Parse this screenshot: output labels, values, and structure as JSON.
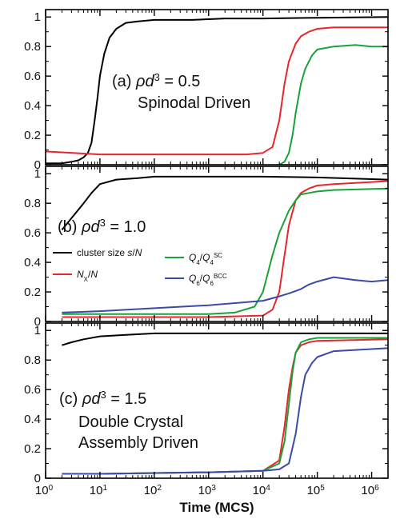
{
  "chart_data": {
    "type": "line",
    "x_scale": "log",
    "xlim": [
      1,
      2000000
    ],
    "x_ticks": [
      1,
      10,
      100,
      1000,
      10000,
      100000,
      1000000
    ],
    "x_tick_labels": [
      {
        "base": "10",
        "exp": "0"
      },
      {
        "base": "10",
        "exp": "1"
      },
      {
        "base": "10",
        "exp": "2"
      },
      {
        "base": "10",
        "exp": "3"
      },
      {
        "base": "10",
        "exp": "4"
      },
      {
        "base": "10",
        "exp": "5"
      },
      {
        "base": "10",
        "exp": "6"
      }
    ],
    "xlabel": "Time (MCS)",
    "ylim": [
      0,
      1.05
    ],
    "y_ticks": [
      "0",
      "0.2",
      "0.4",
      "0.6",
      "0.8",
      "1"
    ],
    "grid": false,
    "colors": {
      "black": "#000000",
      "red": "#e8262b",
      "green": "#1aa23a",
      "blue": "#3a4aa8"
    },
    "legend": {
      "placement": "panel-b-left",
      "entries": [
        {
          "label": "cluster size s/N",
          "color": "#000000"
        },
        {
          "label": "NX/N",
          "color": "#e8262b"
        },
        {
          "label": "Q4/Q4SC",
          "color": "#1aa23a"
        },
        {
          "label": "Q6/Q6BCC",
          "color": "#3a4aa8"
        }
      ]
    },
    "panels": [
      {
        "label_lines": [
          "(a) ρd3 = 0.5",
          "Spinodal Driven"
        ],
        "series": [
          {
            "color": "#000000",
            "x": [
              1,
              2,
              3,
              4,
              5,
              6,
              7,
              8,
              9,
              10,
              12,
              15,
              20,
              30,
              50,
              100,
              200,
              500,
              1000,
              2000,
              5000,
              10000,
              100000,
              2000000
            ],
            "y": [
              0.01,
              0.01,
              0.02,
              0.03,
              0.05,
              0.08,
              0.15,
              0.3,
              0.45,
              0.6,
              0.75,
              0.86,
              0.92,
              0.96,
              0.97,
              0.98,
              0.98,
              0.98,
              0.985,
              0.99,
              0.99,
              0.99,
              0.995,
              1.0
            ]
          },
          {
            "color": "#e8262b",
            "x": [
              1,
              10,
              100,
              1000,
              5000,
              10000,
              15000,
              20000,
              25000,
              30000,
              40000,
              50000,
              70000,
              100000,
              200000,
              500000,
              2000000
            ],
            "y": [
              0.09,
              0.07,
              0.07,
              0.07,
              0.07,
              0.08,
              0.12,
              0.3,
              0.55,
              0.7,
              0.82,
              0.87,
              0.9,
              0.92,
              0.93,
              0.93,
              0.93
            ]
          },
          {
            "color": "#1aa23a",
            "x": [
              20000,
              25000,
              30000,
              35000,
              40000,
              50000,
              60000,
              80000,
              100000,
              200000,
              500000,
              1000000,
              2000000
            ],
            "y": [
              0,
              0.02,
              0.08,
              0.2,
              0.35,
              0.55,
              0.65,
              0.74,
              0.78,
              0.8,
              0.81,
              0.8,
              0.8
            ]
          }
        ]
      },
      {
        "label_lines": [
          "(b) ρd3 = 1.0"
        ],
        "series": [
          {
            "color": "#000000",
            "x": [
              2,
              3,
              5,
              7,
              10,
              20,
              50,
              100,
              1000,
              10000,
              100000,
              2000000
            ],
            "y": [
              0.62,
              0.7,
              0.8,
              0.87,
              0.93,
              0.96,
              0.97,
              0.98,
              0.98,
              0.98,
              0.975,
              0.96
            ]
          },
          {
            "color": "#e8262b",
            "x": [
              2,
              10,
              1000,
              10000,
              15000,
              20000,
              25000,
              30000,
              40000,
              50000,
              70000,
              100000,
              200000,
              2000000
            ],
            "y": [
              0.03,
              0.03,
              0.03,
              0.04,
              0.08,
              0.2,
              0.45,
              0.65,
              0.82,
              0.87,
              0.9,
              0.92,
              0.93,
              0.95
            ]
          },
          {
            "color": "#1aa23a",
            "x": [
              2,
              10,
              1000,
              3000,
              7000,
              10000,
              15000,
              20000,
              30000,
              40000,
              50000,
              70000,
              100000,
              200000,
              2000000
            ],
            "y": [
              0.05,
              0.05,
              0.05,
              0.06,
              0.1,
              0.2,
              0.45,
              0.6,
              0.75,
              0.82,
              0.86,
              0.87,
              0.88,
              0.89,
              0.9
            ]
          },
          {
            "color": "#3a4aa8",
            "x": [
              2,
              10,
              100,
              1000,
              10000,
              20000,
              30000,
              50000,
              70000,
              100000,
              200000,
              500000,
              1000000,
              2000000
            ],
            "y": [
              0.06,
              0.07,
              0.09,
              0.11,
              0.14,
              0.17,
              0.19,
              0.22,
              0.25,
              0.27,
              0.3,
              0.28,
              0.27,
              0.28
            ]
          }
        ]
      },
      {
        "label_lines": [
          "(c) ρd3 = 1.5",
          "Double Crystal",
          "Assembly Driven"
        ],
        "series": [
          {
            "color": "#000000",
            "x": [
              2,
              3,
              5,
              10,
              30,
              100,
              1000,
              10000,
              100000,
              2000000
            ],
            "y": [
              0.9,
              0.92,
              0.94,
              0.96,
              0.97,
              0.98,
              0.98,
              0.98,
              0.98,
              0.98
            ]
          },
          {
            "color": "#e8262b",
            "x": [
              2,
              10,
              1000,
              10000,
              20000,
              25000,
              30000,
              35000,
              40000,
              50000,
              70000,
              100000,
              2000000
            ],
            "y": [
              0.03,
              0.03,
              0.04,
              0.05,
              0.12,
              0.35,
              0.6,
              0.75,
              0.85,
              0.9,
              0.92,
              0.93,
              0.94
            ]
          },
          {
            "color": "#1aa23a",
            "x": [
              2,
              10,
              1000,
              10000,
              20000,
              25000,
              30000,
              35000,
              40000,
              50000,
              70000,
              100000,
              2000000
            ],
            "y": [
              0.03,
              0.03,
              0.04,
              0.05,
              0.1,
              0.25,
              0.5,
              0.72,
              0.85,
              0.92,
              0.94,
              0.95,
              0.95
            ]
          },
          {
            "color": "#3a4aa8",
            "x": [
              2,
              10,
              1000,
              10000,
              20000,
              30000,
              40000,
              50000,
              60000,
              80000,
              100000,
              200000,
              2000000
            ],
            "y": [
              0.03,
              0.03,
              0.04,
              0.05,
              0.06,
              0.1,
              0.3,
              0.55,
              0.7,
              0.78,
              0.82,
              0.86,
              0.88
            ]
          }
        ]
      }
    ]
  }
}
